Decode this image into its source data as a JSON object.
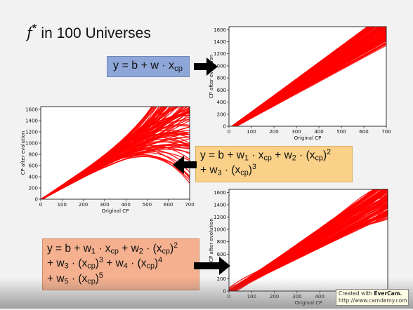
{
  "title": {
    "italic": "f",
    "star": "*",
    "rest": " in 100 Universes"
  },
  "chart_data": [
    {
      "id": "linear",
      "type": "line",
      "xlabel": "Original CP",
      "ylabel": "CP after evolution",
      "xlim": [
        0,
        700
      ],
      "ylim": [
        0,
        1650
      ],
      "xticks": [
        0,
        100,
        200,
        300,
        400,
        500,
        600,
        700
      ],
      "yticks": [
        0,
        200,
        400,
        600,
        800,
        1000,
        1200,
        1400,
        1600
      ],
      "series_color": "#ff0000",
      "curve_count": 100
    },
    {
      "id": "cubic",
      "type": "line",
      "xlabel": "Original CP",
      "ylabel": "CP after evolution",
      "xlim": [
        0,
        700
      ],
      "ylim": [
        0,
        1650
      ],
      "xticks": [
        0,
        100,
        200,
        300,
        400,
        500,
        600,
        700
      ],
      "yticks": [
        0,
        200,
        400,
        600,
        800,
        1000,
        1200,
        1400,
        1600
      ],
      "series_color": "#ff0000",
      "curve_count": 100
    },
    {
      "id": "quintic",
      "type": "line",
      "xlabel": "Original CP",
      "ylabel": "CP after evolution",
      "xlim": [
        0,
        700
      ],
      "ylim": [
        0,
        1650
      ],
      "xticks": [
        0,
        100,
        200,
        300,
        400,
        500
      ],
      "yticks": [
        0,
        200,
        400,
        600,
        800,
        1000,
        1200,
        1400,
        1600
      ],
      "series_color": "#ff0000",
      "curve_count": 100
    }
  ],
  "formulas": {
    "linear": {
      "y": "y = b + w · x",
      "sub": "cp"
    },
    "cubic": {
      "l1a": "y = b + w",
      "l1b": "1",
      "l1c": " · x",
      "l1d": "cp",
      "l1e": " + w",
      "l1f": "2",
      "l1g": " · (x",
      "l1h": "cp",
      "l1i": ")",
      "l1j": "2",
      "l2a": "+ w",
      "l2b": "3",
      "l2c": " · (x",
      "l2d": "cp",
      "l2e": ")",
      "l2f": "3"
    },
    "quintic": {
      "l1a": "y = b + w",
      "l1b": "1",
      "l1c": " · x",
      "l1d": "cp",
      "l1e": " + w",
      "l1f": "2",
      "l1g": " · (x",
      "l1h": "cp",
      "l1i": ")",
      "l1j": "2",
      "l2a": "+ w",
      "l2b": "3",
      "l2c": " · (x",
      "l2d": "cp",
      "l2e": ")",
      "l2f": "3",
      "l2g": " + w",
      "l2h": "4",
      "l2i": " · (x",
      "l2j": "cp",
      "l2k": ")",
      "l2l": "4",
      "l3a": "+ w",
      "l3b": "5",
      "l3c": " · (x",
      "l3d": "cp",
      "l3e": ")",
      "l3f": "5"
    }
  },
  "watermark": {
    "line1": "Created with ",
    "brand": "EverCam.",
    "line2": "http://www.camdemy.com"
  }
}
